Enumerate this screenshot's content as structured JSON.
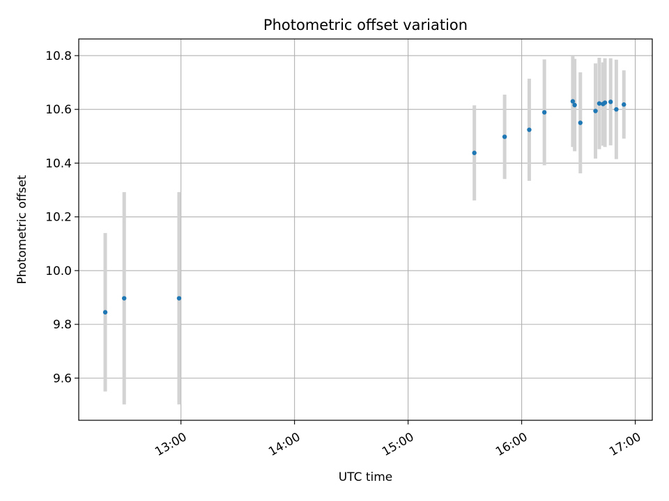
{
  "chart_data": {
    "type": "scatter",
    "title": "Photometric offset variation",
    "xlabel": "UTC time",
    "ylabel": "Photometric offset",
    "x_unit": "UTC hours",
    "xlim": [
      12.1,
      17.15
    ],
    "ylim": [
      9.443,
      10.862
    ],
    "grid": true,
    "x_ticks": [
      {
        "value": 13,
        "label": "13:00"
      },
      {
        "value": 14,
        "label": "14:00"
      },
      {
        "value": 15,
        "label": "15:00"
      },
      {
        "value": 16,
        "label": "16:00"
      },
      {
        "value": 17,
        "label": "17:00"
      }
    ],
    "y_ticks": [
      {
        "value": 9.6,
        "label": "9.6"
      },
      {
        "value": 9.8,
        "label": "9.8"
      },
      {
        "value": 10.0,
        "label": "10.0"
      },
      {
        "value": 10.2,
        "label": "10.2"
      },
      {
        "value": 10.4,
        "label": "10.4"
      },
      {
        "value": 10.6,
        "label": "10.6"
      },
      {
        "value": 10.8,
        "label": "10.8"
      }
    ],
    "colors": {
      "point": "#1f77b4",
      "errorbar": "#d3d3d3",
      "grid": "#b0b0b0"
    },
    "points": [
      {
        "x": "12:20",
        "y": 9.845,
        "err": 0.295
      },
      {
        "x": "12:30",
        "y": 9.897,
        "err": 0.395
      },
      {
        "x": "12:59",
        "y": 9.897,
        "err": 0.395
      },
      {
        "x": "15:35",
        "y": 10.438,
        "err": 0.177
      },
      {
        "x": "15:51",
        "y": 10.498,
        "err": 0.157
      },
      {
        "x": "16:04",
        "y": 10.524,
        "err": 0.19
      },
      {
        "x": "16:12",
        "y": 10.589,
        "err": 0.197
      },
      {
        "x": "16:27",
        "y": 10.63,
        "err": 0.17
      },
      {
        "x": "16:28",
        "y": 10.616,
        "err": 0.172
      },
      {
        "x": "16:31",
        "y": 10.55,
        "err": 0.188
      },
      {
        "x": "16:39",
        "y": 10.594,
        "err": 0.177
      },
      {
        "x": "16:41",
        "y": 10.622,
        "err": 0.17
      },
      {
        "x": "16:43",
        "y": 10.62,
        "err": 0.155
      },
      {
        "x": "16:44",
        "y": 10.625,
        "err": 0.165
      },
      {
        "x": "16:47",
        "y": 10.628,
        "err": 0.162
      },
      {
        "x": "16:50",
        "y": 10.6,
        "err": 0.185
      },
      {
        "x": "16:54",
        "y": 10.618,
        "err": 0.127
      }
    ]
  }
}
